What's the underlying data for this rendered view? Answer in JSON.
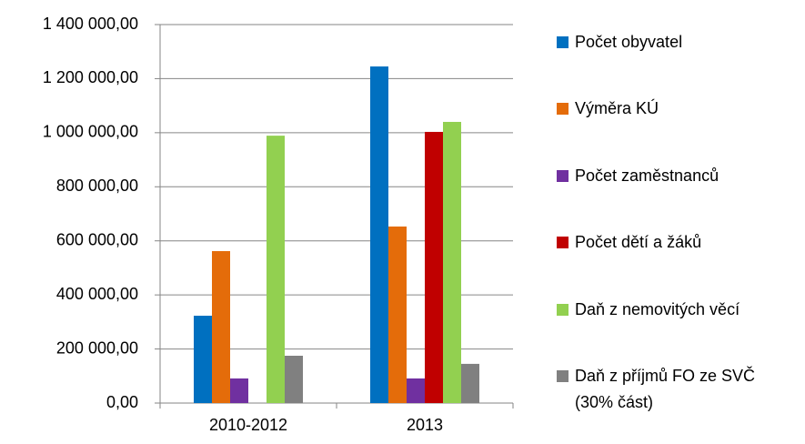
{
  "chart_data": {
    "type": "bar",
    "categories": [
      "2010-2012",
      "2013"
    ],
    "series": [
      {
        "name": "Počet obyvatel",
        "color": "#0070c0",
        "values": [
          323000,
          1245000
        ]
      },
      {
        "name": "Výměra KÚ",
        "color": "#e46c0a",
        "values": [
          562000,
          653000
        ]
      },
      {
        "name": "Počet zaměstnanců",
        "color": "#7030a0",
        "values": [
          91000,
          91000
        ]
      },
      {
        "name": "Počet dětí a žáků",
        "color": "#c00000",
        "values": [
          null,
          1003000
        ]
      },
      {
        "name": "Daň z nemovitých věcí",
        "color": "#92d050",
        "values": [
          989000,
          1040000
        ]
      },
      {
        "name": "Daň z příjmů FO ze SVČ (30% část)",
        "color": "#808080",
        "values": [
          175000,
          145000
        ]
      }
    ],
    "ylim": [
      0,
      1400000
    ],
    "yticks": [
      {
        "value": 0,
        "label": "0,00"
      },
      {
        "value": 200000,
        "label": "200 000,00"
      },
      {
        "value": 400000,
        "label": "400 000,00"
      },
      {
        "value": 600000,
        "label": "600 000,00"
      },
      {
        "value": 800000,
        "label": "800 000,00"
      },
      {
        "value": 1000000,
        "label": "1 000 000,00"
      },
      {
        "value": 1200000,
        "label": "1 200 000,00"
      },
      {
        "value": 1400000,
        "label": "1 400 000,00"
      }
    ],
    "grid": true,
    "legend": "right"
  }
}
